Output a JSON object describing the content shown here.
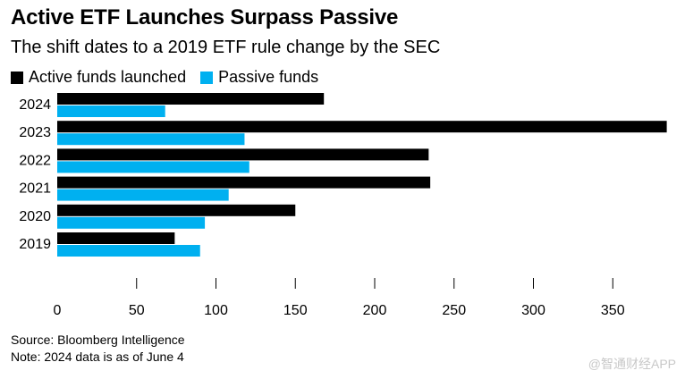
{
  "title": "Active ETF Launches Surpass Passive",
  "subtitle": "The shift dates to a 2019 ETF rule change by the SEC",
  "colors": {
    "active": "#000000",
    "passive": "#00b0f0",
    "axis": "#000000"
  },
  "chart_data": {
    "type": "bar",
    "orientation": "horizontal",
    "title": "Active ETF Launches Surpass Passive",
    "subtitle": "The shift dates to a 2019 ETF rule change by the SEC",
    "categories": [
      "2024",
      "2023",
      "2022",
      "2021",
      "2020",
      "2019"
    ],
    "series": [
      {
        "name": "Active funds launched",
        "color": "#000000",
        "values": [
          168,
          384,
          234,
          235,
          150,
          74
        ]
      },
      {
        "name": "Passive funds",
        "color": "#00b0f0",
        "values": [
          68,
          118,
          121,
          108,
          93,
          90
        ]
      }
    ],
    "xticks": [
      "0",
      "50",
      "100",
      "150",
      "200",
      "250",
      "300",
      "350"
    ],
    "xlim": [
      0,
      390
    ],
    "xlabel": "",
    "ylabel": "",
    "legend_position": "top-left",
    "grid": false
  },
  "footer": {
    "source": "Source: Bloomberg Intelligence",
    "note": "Note: 2024 data is as of June 4"
  },
  "watermark": "@智通财经APP"
}
